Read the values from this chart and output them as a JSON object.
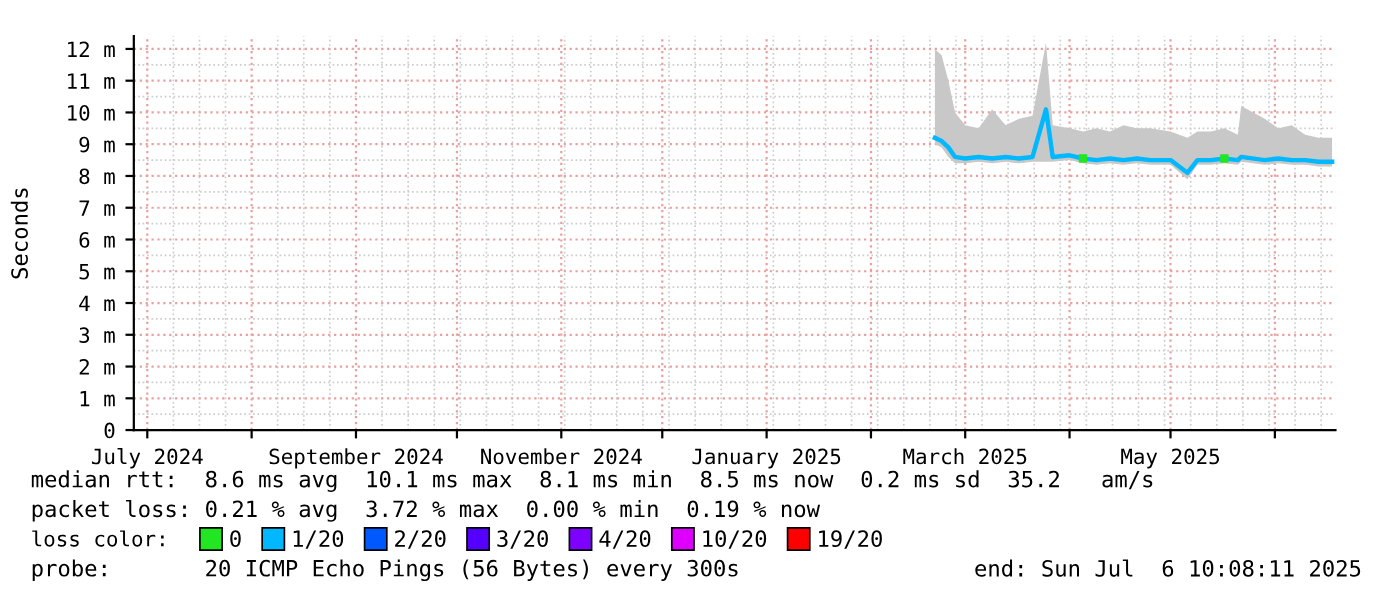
{
  "chart_data": {
    "type": "line",
    "ylabel": "Seconds",
    "legend_title": "loss color:",
    "legend": "bottom",
    "grid": true,
    "line_style": "solid",
    "xlim": [
      "2024-06-27",
      "2025-06-19"
    ],
    "xticks": [
      {
        "value": "2024-07-01",
        "label": "July 2024"
      },
      {
        "value": "2024-08-01",
        "label": null
      },
      {
        "value": "2024-09-01",
        "label": "September 2024"
      },
      {
        "value": "2024-10-01",
        "label": null
      },
      {
        "value": "2024-11-01",
        "label": "November 2024"
      },
      {
        "value": "2024-12-01",
        "label": null
      },
      {
        "value": "2025-01-01",
        "label": "January 2025"
      },
      {
        "value": "2025-02-01",
        "label": null
      },
      {
        "value": "2025-03-01",
        "label": "March 2025"
      },
      {
        "value": "2025-04-01",
        "label": null
      },
      {
        "value": "2025-05-01",
        "label": "May 2025"
      },
      {
        "value": "2025-06-01",
        "label": null
      }
    ],
    "ylim": [
      0,
      12.4
    ],
    "yticks": [
      {
        "value": 0,
        "label": "0"
      },
      {
        "value": 1,
        "label": "1 m"
      },
      {
        "value": 2,
        "label": "2 m"
      },
      {
        "value": 3,
        "label": "3 m"
      },
      {
        "value": 4,
        "label": "4 m"
      },
      {
        "value": 5,
        "label": "5 m"
      },
      {
        "value": 6,
        "label": "6 m"
      },
      {
        "value": 7,
        "label": "7 m"
      },
      {
        "value": 8,
        "label": "8 m"
      },
      {
        "value": 9,
        "label": "9 m"
      },
      {
        "value": 10,
        "label": "10 m"
      },
      {
        "value": 11,
        "label": "11 m"
      },
      {
        "value": 12,
        "label": "12 m"
      }
    ],
    "x": [
      "2025-02-20",
      "2025-02-22",
      "2025-02-24",
      "2025-02-26",
      "2025-03-01",
      "2025-03-05",
      "2025-03-09",
      "2025-03-13",
      "2025-03-17",
      "2025-03-21",
      "2025-03-25",
      "2025-03-27",
      "2025-04-01",
      "2025-04-05",
      "2025-04-09",
      "2025-04-13",
      "2025-04-17",
      "2025-04-21",
      "2025-04-25",
      "2025-05-01",
      "2025-05-06",
      "2025-05-09",
      "2025-05-13",
      "2025-05-17",
      "2025-05-21",
      "2025-05-22",
      "2025-05-29",
      "2025-06-02",
      "2025-06-06",
      "2025-06-10",
      "2025-06-14",
      "2025-06-18"
    ],
    "series": [
      {
        "name": "0",
        "type": "scatter",
        "marker": "square",
        "color": "#22e622",
        "values": [
          null,
          null,
          null,
          null,
          null,
          null,
          null,
          null,
          null,
          null,
          null,
          null,
          null,
          8.55,
          null,
          null,
          null,
          null,
          null,
          null,
          null,
          null,
          null,
          8.55,
          null,
          null,
          null,
          null,
          null,
          null,
          null,
          null
        ]
      },
      {
        "name": "1/20",
        "color": "#00b8ff",
        "values": [
          9.2,
          9.1,
          8.9,
          8.6,
          8.55,
          8.6,
          8.55,
          8.6,
          8.55,
          8.6,
          10.1,
          8.6,
          8.65,
          8.55,
          8.5,
          8.55,
          8.5,
          8.55,
          8.5,
          8.5,
          8.1,
          8.5,
          8.5,
          8.55,
          8.5,
          8.6,
          8.5,
          8.55,
          8.5,
          8.5,
          8.45,
          8.45
        ],
        "lower": [
          9.0,
          8.9,
          8.6,
          8.4,
          8.4,
          8.45,
          8.4,
          8.45,
          8.4,
          8.45,
          8.45,
          8.45,
          8.5,
          8.4,
          8.35,
          8.4,
          8.35,
          8.4,
          8.35,
          8.35,
          7.9,
          8.35,
          8.35,
          8.4,
          8.35,
          8.45,
          8.35,
          8.4,
          8.35,
          8.35,
          8.3,
          8.3
        ],
        "upper": [
          12.0,
          11.8,
          11.0,
          10.0,
          9.6,
          9.5,
          10.1,
          9.6,
          9.8,
          9.9,
          12.2,
          9.6,
          9.5,
          9.4,
          9.5,
          9.4,
          9.6,
          9.5,
          9.5,
          9.4,
          9.2,
          9.4,
          9.4,
          9.5,
          9.3,
          10.2,
          9.8,
          9.5,
          9.6,
          9.3,
          9.2,
          9.2
        ]
      },
      {
        "name": "2/20",
        "color": "#0059ff",
        "values": [
          null,
          null,
          null,
          null,
          null,
          null,
          null,
          null,
          null,
          null,
          null,
          null,
          null,
          null,
          null,
          null,
          null,
          null,
          null,
          null,
          null,
          null,
          null,
          null,
          null,
          null,
          null,
          null,
          null,
          null,
          null,
          null
        ]
      },
      {
        "name": "3/20",
        "color": "#5500ff",
        "values": [
          null,
          null,
          null,
          null,
          null,
          null,
          null,
          null,
          null,
          null,
          null,
          null,
          null,
          null,
          null,
          null,
          null,
          null,
          null,
          null,
          null,
          null,
          null,
          null,
          null,
          null,
          null,
          null,
          null,
          null,
          null,
          null
        ]
      },
      {
        "name": "4/20",
        "color": "#7e00ff",
        "values": [
          null,
          null,
          null,
          null,
          null,
          null,
          null,
          null,
          null,
          null,
          null,
          null,
          null,
          null,
          null,
          null,
          null,
          null,
          null,
          null,
          null,
          null,
          null,
          null,
          null,
          null,
          null,
          null,
          null,
          null,
          null,
          null
        ]
      },
      {
        "name": "10/20",
        "color": "#dd00ff",
        "values": [
          null,
          null,
          null,
          null,
          null,
          null,
          null,
          null,
          null,
          null,
          null,
          null,
          null,
          null,
          null,
          null,
          null,
          null,
          null,
          null,
          null,
          null,
          null,
          null,
          null,
          null,
          null,
          null,
          null,
          null,
          null,
          null
        ]
      },
      {
        "name": "19/20",
        "color": "#ff0000",
        "values": [
          null,
          null,
          null,
          null,
          null,
          null,
          null,
          null,
          null,
          null,
          null,
          null,
          null,
          null,
          null,
          null,
          null,
          null,
          null,
          null,
          null,
          null,
          null,
          null,
          null,
          null,
          null,
          null,
          null,
          null,
          null,
          null
        ]
      }
    ],
    "annotations": [
      "median rtt:  8.6 ms avg  10.1 ms max  8.1 ms min  8.5 ms now  0.2 ms sd  35.2   am/s",
      "packet loss: 0.21 % avg  3.72 % max  0.00 % min  0.19 % now",
      "probe:       20 ICMP Echo Pings (56 Bytes) every 300s",
      "end: Sun Jul  6 10:08:11 2025"
    ]
  }
}
